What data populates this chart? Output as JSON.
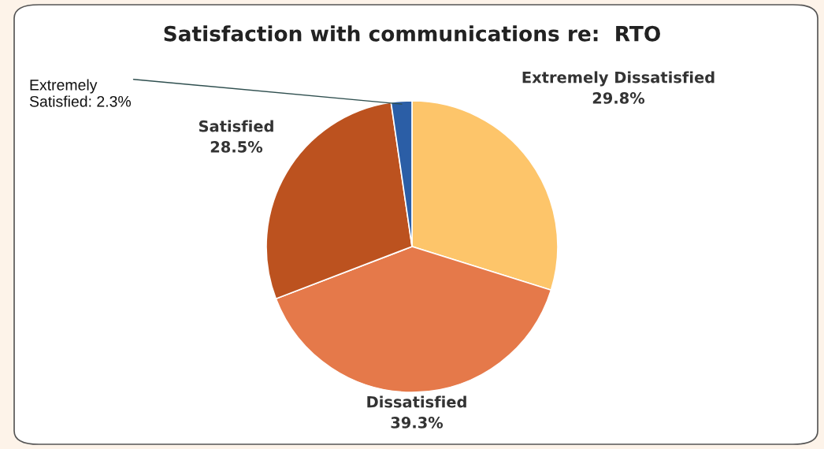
{
  "chart_data": {
    "type": "pie",
    "title": "Satisfaction with communications re:  RTO",
    "categories": [
      "Extremely Dissatisfied",
      "Dissatisfied",
      "Satisfied",
      "Extremely\nSatisfied"
    ],
    "values": [
      29.8,
      39.3,
      28.5,
      2.3
    ],
    "value_labels": [
      "29.8%",
      "39.3%",
      "28.5%",
      "2.3%"
    ],
    "colors": [
      "#fdc56a",
      "#e5794a",
      "#bc521f",
      "#2b5ea6"
    ]
  }
}
